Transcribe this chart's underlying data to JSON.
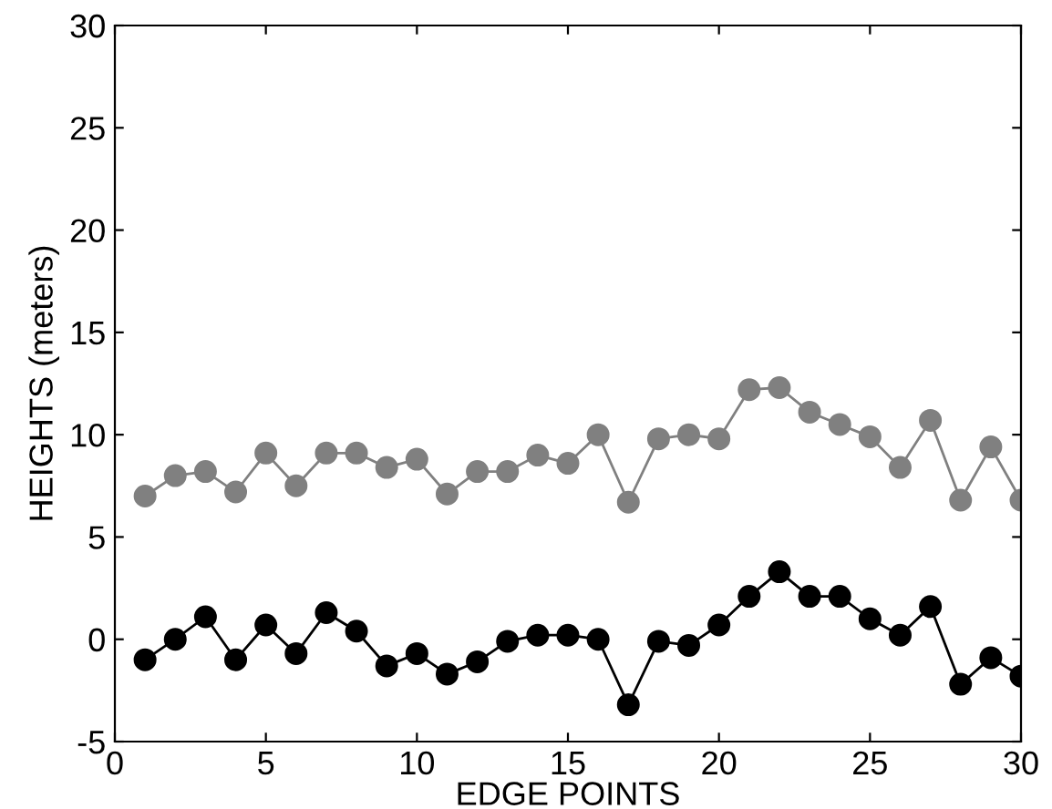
{
  "chart_data": {
    "type": "line",
    "xlabel": "EDGE POINTS",
    "ylabel": "HEIGHTS (meters)",
    "x": [
      1,
      2,
      3,
      4,
      5,
      6,
      7,
      8,
      9,
      10,
      11,
      12,
      13,
      14,
      15,
      16,
      17,
      18,
      19,
      20,
      21,
      22,
      23,
      24,
      25,
      26,
      27,
      28,
      29,
      30
    ],
    "series": [
      {
        "color": "#808080",
        "values": [
          7.0,
          8.0,
          8.2,
          7.2,
          9.1,
          7.5,
          9.1,
          9.1,
          8.4,
          8.8,
          7.1,
          8.2,
          8.2,
          9.0,
          8.6,
          10.0,
          6.7,
          9.8,
          10.0,
          9.8,
          12.2,
          12.3,
          11.1,
          10.5,
          9.9,
          8.4,
          10.7,
          6.8,
          9.4,
          6.8
        ]
      },
      {
        "color": "#000000",
        "values": [
          -1.0,
          0.0,
          1.1,
          -1.0,
          0.7,
          -0.7,
          1.3,
          0.4,
          -1.3,
          -0.7,
          -1.7,
          -1.1,
          -0.1,
          0.2,
          0.2,
          0.0,
          -3.2,
          -0.1,
          -0.3,
          0.7,
          2.1,
          3.3,
          2.1,
          2.1,
          1.0,
          0.2,
          1.6,
          -2.2,
          -0.9,
          -1.8
        ]
      }
    ],
    "xlim": [
      0,
      30
    ],
    "xticks": [
      0,
      5,
      10,
      15,
      20,
      25,
      30
    ],
    "ylim": [
      -5,
      30
    ],
    "yticks": [
      -5,
      0,
      5,
      10,
      15,
      20,
      25,
      30
    ],
    "marker": "circle",
    "line_style": "solid",
    "grid": false,
    "legend": false
  }
}
